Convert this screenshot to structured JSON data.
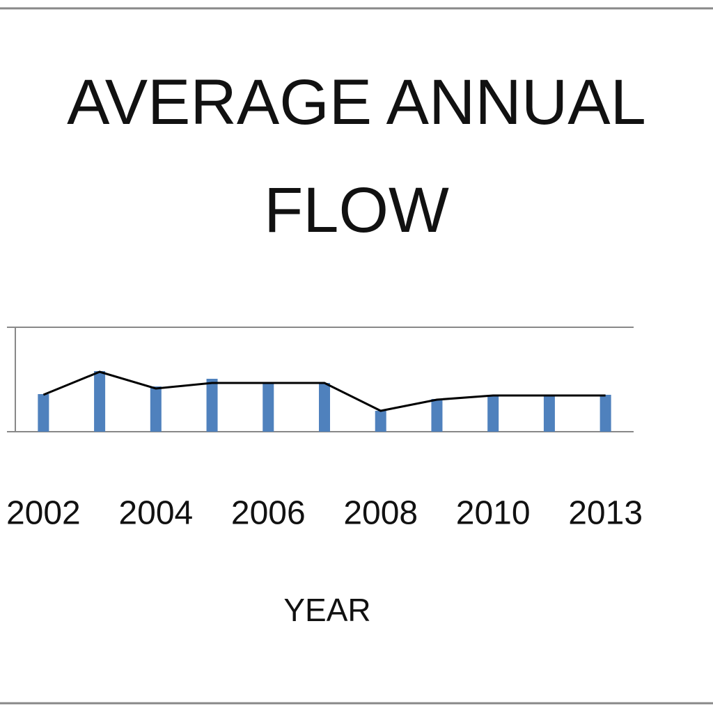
{
  "chart_data": {
    "type": "bar-line",
    "title": "AVERAGE ANNUAL FLOW",
    "x_label": "YEAR",
    "categories": [
      "2002",
      null,
      "2004",
      null,
      "2006",
      null,
      "2008",
      null,
      "2010",
      null,
      "2013"
    ],
    "series": [
      {
        "type": "bar",
        "color": "#4f81bd",
        "values": [
          54,
          87,
          65,
          76,
          70,
          70,
          30,
          47,
          53,
          53,
          53
        ]
      },
      {
        "type": "line",
        "color": "#000000",
        "values": [
          53,
          86,
          62,
          70,
          70,
          70,
          30,
          46,
          52,
          52,
          52
        ]
      }
    ],
    "ylim": [
      0,
      150
    ],
    "grid": true
  }
}
